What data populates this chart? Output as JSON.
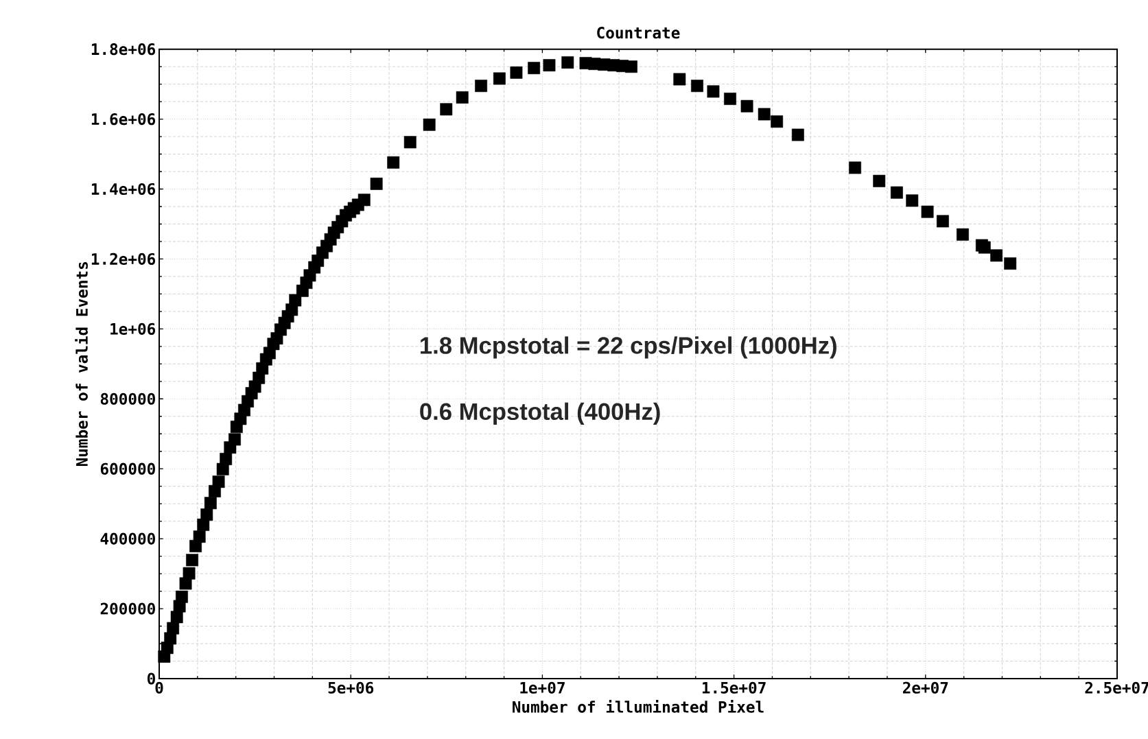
{
  "chart_data": {
    "type": "scatter",
    "title": "Countrate",
    "xlabel": "Number of illuminated Pixel",
    "ylabel": "Number of valid Events",
    "annotations": [
      "1.8 Mcpstotal = 22 cps/Pixel  (1000Hz)",
      "0.6 Mcpstotal  (400Hz)"
    ],
    "x": [
      130000,
      210000,
      290000,
      360000,
      460000,
      530000,
      590000,
      690000,
      780000,
      860000,
      950000,
      1050000,
      1150000,
      1240000,
      1340000,
      1450000,
      1550000,
      1660000,
      1740000,
      1850000,
      1970000,
      2020000,
      2120000,
      2220000,
      2310000,
      2410000,
      2500000,
      2600000,
      2690000,
      2790000,
      2880000,
      2980000,
      3070000,
      3170000,
      3270000,
      3360000,
      3460000,
      3550000,
      3740000,
      3840000,
      3930000,
      4050000,
      4140000,
      4260000,
      4370000,
      4470000,
      4560000,
      4660000,
      4770000,
      4870000,
      4980000,
      5080000,
      5190000,
      5350000,
      5670000,
      6110000,
      6550000,
      7050000,
      7490000,
      7910000,
      8400000,
      8880000,
      9320000,
      9780000,
      10180000,
      10660000,
      11130000,
      11360000,
      11610000,
      11860000,
      12090000,
      12320000,
      13580000,
      14040000,
      14460000,
      14900000,
      15340000,
      15790000,
      16120000,
      16670000,
      18160000,
      18790000,
      19250000,
      19650000,
      20050000,
      20450000,
      20970000,
      21470000,
      21540000,
      21850000,
      22210000
    ],
    "values": [
      63000,
      88000,
      115000,
      144000,
      176000,
      207000,
      234000,
      272000,
      301000,
      339000,
      379000,
      406000,
      440000,
      469000,
      502000,
      536000,
      563000,
      599000,
      628000,
      661000,
      684000,
      720000,
      743000,
      768000,
      793000,
      816000,
      835000,
      860000,
      887000,
      913000,
      931000,
      957000,
      973000,
      998000,
      1017000,
      1036000,
      1055000,
      1082000,
      1109000,
      1132000,
      1153000,
      1176000,
      1195000,
      1218000,
      1237000,
      1256000,
      1275000,
      1291000,
      1308000,
      1325000,
      1335000,
      1345000,
      1355000,
      1369000,
      1415000,
      1476000,
      1534000,
      1584000,
      1628000,
      1662000,
      1695000,
      1716000,
      1733000,
      1746000,
      1754000,
      1762000,
      1760000,
      1758000,
      1756000,
      1754000,
      1752000,
      1750000,
      1714000,
      1695000,
      1679000,
      1658000,
      1637000,
      1614000,
      1593000,
      1555000,
      1461000,
      1423000,
      1390000,
      1367000,
      1335000,
      1308000,
      1270000,
      1239000,
      1233000,
      1210000,
      1187000
    ],
    "color": "#000000",
    "marker": "square",
    "grid": true,
    "xlim": [
      0,
      25000000
    ],
    "xticks": [
      0,
      {
        "value": 5000000,
        "label": "5e+06"
      },
      {
        "value": 10000000,
        "label": "1e+07"
      },
      {
        "value": 15000000,
        "label": "1.5e+07"
      },
      {
        "value": 20000000,
        "label": "2e+07"
      },
      {
        "value": 25000000,
        "label": "2.5e+07"
      }
    ],
    "ylim": [
      0,
      1800000
    ],
    "yticks": [
      0,
      200000,
      400000,
      600000,
      800000,
      {
        "value": 1000000,
        "label": "1e+06"
      },
      {
        "value": 1200000,
        "label": "1.2e+06"
      },
      {
        "value": 1400000,
        "label": "1.4e+06"
      },
      {
        "value": 1600000,
        "label": "1.6e+06"
      },
      {
        "value": 1800000,
        "label": "1.8e+06"
      }
    ]
  }
}
